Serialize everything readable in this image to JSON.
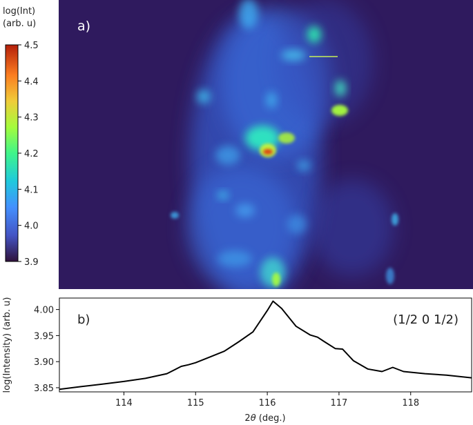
{
  "colorbar": {
    "label_line1": "log(Int)",
    "label_line2": "(arb. u)",
    "ticks": [
      "4.5",
      "4.4",
      "4.3",
      "4.2",
      "4.1",
      "4.0",
      "3.9"
    ],
    "range": [
      3.9,
      4.5
    ],
    "colormap": "turbo"
  },
  "panel_a": {
    "label": "a)",
    "background_color": "#2f1a5e",
    "marker_color": "#c7f05a"
  },
  "panel_b": {
    "label": "b)",
    "annotation": "(1/2 0 1/2)",
    "line_color": "#000000"
  },
  "chart_data": [
    {
      "type": "heatmap",
      "title": "a)",
      "colorbar_label": "log(Int) (arb. u)",
      "value_range": [
        3.9,
        4.5
      ],
      "colorbar_ticks": [
        3.9,
        4.0,
        4.1,
        4.2,
        4.3,
        4.4,
        4.5
      ],
      "note": ""
    },
    {
      "type": "line",
      "title": "b)",
      "annotation": "(1/2 0 1/2)",
      "xlabel": "2θ (deg.)",
      "ylabel": "log(Intensity) (arb. u)",
      "xlim": [
        113.1,
        118.85
      ],
      "ylim": [
        3.842,
        4.022
      ],
      "xticks": [
        114,
        115,
        116,
        117,
        118
      ],
      "yticks": [
        3.85,
        3.9,
        3.95,
        4.0
      ],
      "xtick_labels": [
        "114",
        "115",
        "116",
        "117",
        "118"
      ],
      "ytick_labels": [
        "3.85",
        "3.90",
        "3.95",
        "4.00"
      ],
      "grid": false,
      "x": [
        113.1,
        113.4,
        113.7,
        114.0,
        114.3,
        114.6,
        114.8,
        114.9,
        115.0,
        115.2,
        115.4,
        115.6,
        115.8,
        116.0,
        116.08,
        116.2,
        116.4,
        116.6,
        116.7,
        116.8,
        116.95,
        117.05,
        117.2,
        117.4,
        117.6,
        117.75,
        117.9,
        118.2,
        118.5,
        118.85
      ],
      "y": [
        3.847,
        3.852,
        3.857,
        3.862,
        3.868,
        3.877,
        3.891,
        3.894,
        3.898,
        3.909,
        3.92,
        3.938,
        3.957,
        3.998,
        4.016,
        4.002,
        3.968,
        3.951,
        3.947,
        3.938,
        3.925,
        3.924,
        3.902,
        3.886,
        3.881,
        3.889,
        3.881,
        3.877,
        3.874,
        3.869
      ]
    }
  ]
}
